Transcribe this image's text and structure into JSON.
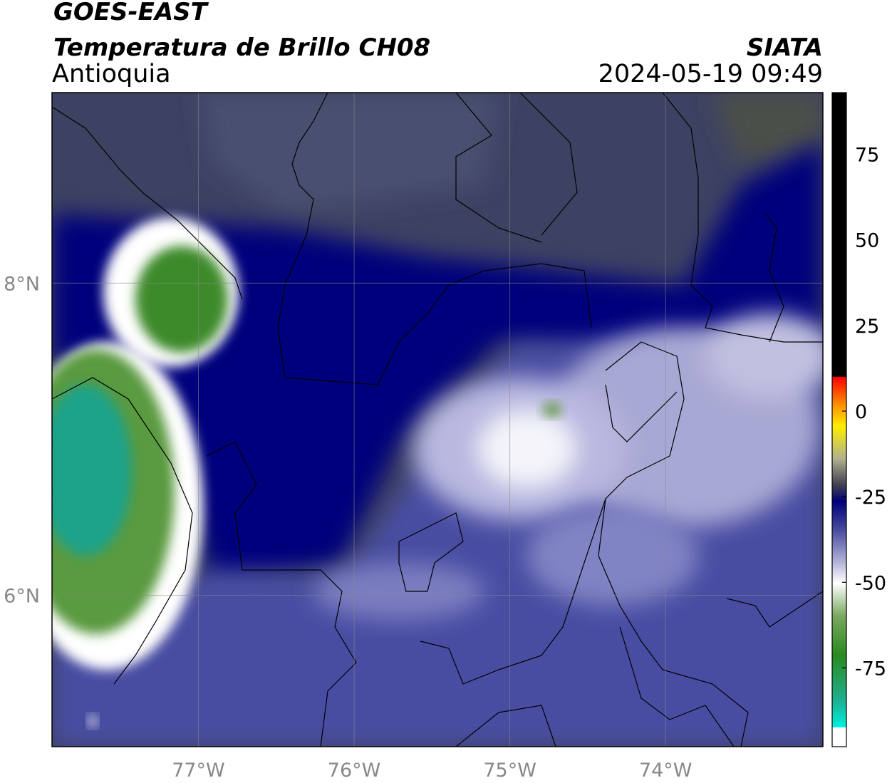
{
  "header": {
    "satellite": "GOES-EAST",
    "product": "Temperatura de Brillo CH08",
    "region": "Antioquia",
    "source": "SIATA",
    "datetime": "2024-05-19 09:49"
  },
  "map": {
    "lon_range": [
      -77.94,
      -72.99
    ],
    "lat_range": [
      5.03,
      9.22
    ],
    "lon_ticks": [
      {
        "value": -77,
        "label": "77°W"
      },
      {
        "value": -76,
        "label": "76°W"
      },
      {
        "value": -75,
        "label": "75°W"
      },
      {
        "value": -74,
        "label": "74°W"
      }
    ],
    "lat_ticks": [
      {
        "value": 8,
        "label": "8°N"
      },
      {
        "value": 6,
        "label": "6°N"
      }
    ],
    "grid": true
  },
  "colorbar": {
    "range": [
      -98,
      93
    ],
    "ticks": [
      75,
      50,
      25,
      0,
      -25,
      -50,
      -75
    ]
  }
}
